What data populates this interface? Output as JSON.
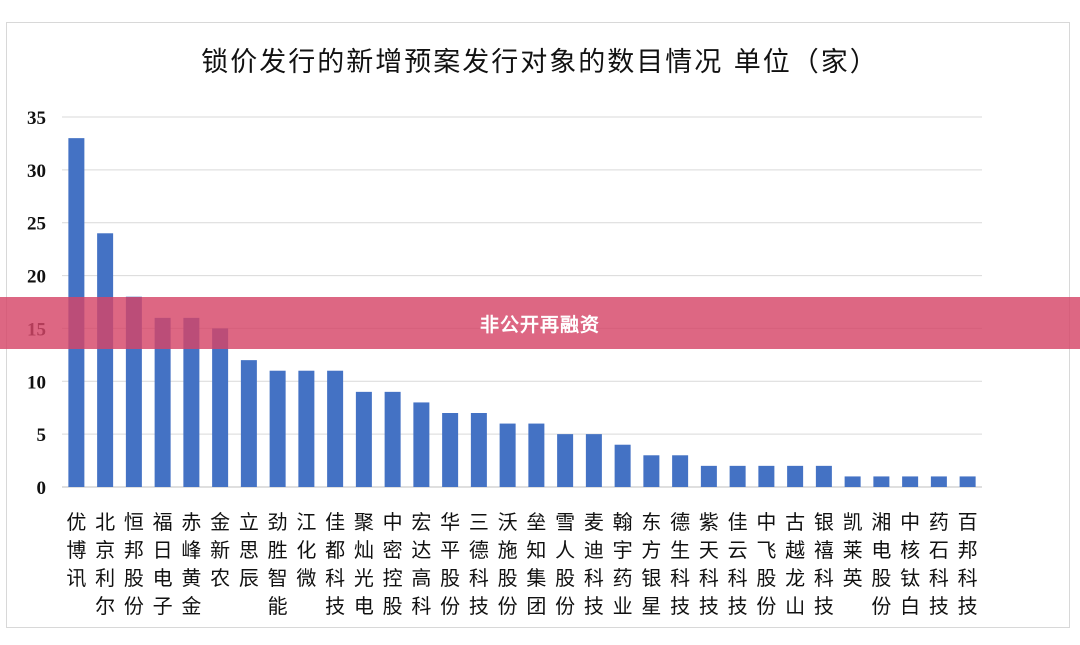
{
  "banner": {
    "text": "非公开再融资"
  },
  "chart_data": {
    "type": "bar",
    "title": "锁价发行的新增预案发行对象的数目情况   单位（家）",
    "xlabel": "",
    "ylabel": "",
    "ylim": [
      0,
      35
    ],
    "yticks": [
      0,
      5,
      10,
      15,
      20,
      25,
      30,
      35
    ],
    "grid": true,
    "legend": "none",
    "bar_color": "#4472c4",
    "categories": [
      "优博讯",
      "北京利尔",
      "恒邦股份",
      "福日电子",
      "赤峰黄金",
      "金新农",
      "立思辰",
      "劲胜智能",
      "江化微",
      "佳都科技",
      "聚灿光电",
      "中密控股",
      "宏达高科",
      "华平股份",
      "三德科技",
      "沃施股份",
      "垒知集团",
      "雪人股份",
      "麦迪科技",
      "翰宇药业",
      "东方银星",
      "德生科技",
      "紫天科技",
      "佳云科技",
      "中飞股份",
      "古越龙山",
      "银禧科技",
      "凯莱英",
      "湘电股份",
      "中核钛白",
      "药石科技",
      "百邦科技"
    ],
    "values": [
      33,
      24,
      18,
      16,
      16,
      15,
      12,
      11,
      11,
      11,
      9,
      9,
      8,
      7,
      7,
      6,
      6,
      5,
      5,
      4,
      3,
      3,
      2,
      2,
      2,
      2,
      2,
      1,
      1,
      1,
      1,
      1
    ]
  }
}
